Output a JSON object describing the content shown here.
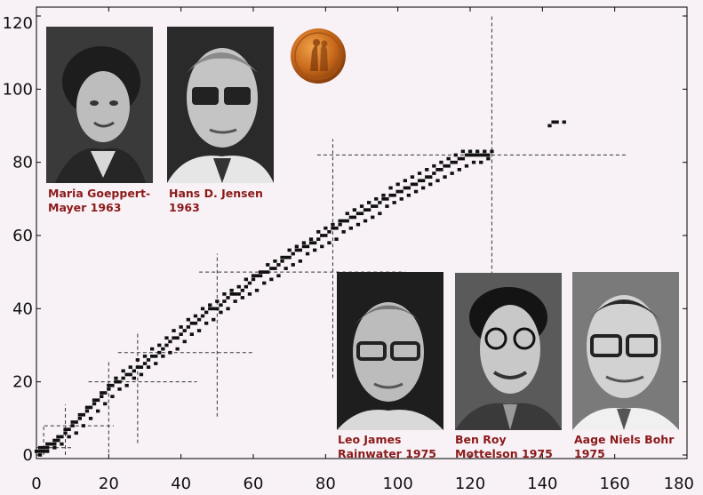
{
  "chart_data": {
    "type": "scatter",
    "xlim": [
      0,
      180
    ],
    "ylim": [
      0,
      120
    ],
    "xticks": [
      0,
      20,
      40,
      60,
      80,
      100,
      120,
      140,
      160,
      180
    ],
    "yticks": [
      0,
      20,
      40,
      60,
      80,
      100,
      120
    ],
    "magic_numbers": [
      2,
      8,
      20,
      28,
      50,
      82,
      126
    ],
    "grid": false,
    "series": [
      {
        "points": [
          [
            0,
            1
          ],
          [
            1,
            1
          ],
          [
            1,
            2
          ],
          [
            2,
            2
          ],
          [
            3,
            2
          ],
          [
            4,
            3
          ],
          [
            5,
            3
          ],
          [
            6,
            4
          ],
          [
            7,
            5
          ],
          [
            8,
            6
          ],
          [
            9,
            7
          ],
          [
            10,
            8
          ],
          [
            11,
            9
          ],
          [
            12,
            10
          ],
          [
            13,
            11
          ],
          [
            14,
            12
          ],
          [
            15,
            13
          ],
          [
            16,
            14
          ],
          [
            17,
            15
          ],
          [
            18,
            16
          ],
          [
            19,
            17
          ],
          [
            20,
            18
          ],
          [
            21,
            19
          ],
          [
            22,
            20
          ],
          [
            23,
            20
          ],
          [
            24,
            21
          ],
          [
            25,
            22
          ],
          [
            26,
            22
          ],
          [
            27,
            23
          ],
          [
            28,
            24
          ],
          [
            29,
            24
          ],
          [
            30,
            25
          ],
          [
            31,
            26
          ],
          [
            32,
            27
          ],
          [
            33,
            27
          ],
          [
            34,
            28
          ],
          [
            35,
            29
          ],
          [
            36,
            30
          ],
          [
            37,
            31
          ],
          [
            38,
            32
          ],
          [
            39,
            32
          ],
          [
            40,
            33
          ],
          [
            41,
            34
          ],
          [
            42,
            35
          ],
          [
            43,
            36
          ],
          [
            44,
            36
          ],
          [
            45,
            37
          ],
          [
            46,
            38
          ],
          [
            47,
            39
          ],
          [
            48,
            40
          ],
          [
            49,
            40
          ],
          [
            50,
            40
          ],
          [
            51,
            41
          ],
          [
            52,
            42
          ],
          [
            53,
            43
          ],
          [
            54,
            44
          ],
          [
            55,
            44
          ],
          [
            56,
            44
          ],
          [
            57,
            45
          ],
          [
            58,
            46
          ],
          [
            59,
            47
          ],
          [
            60,
            48
          ],
          [
            61,
            49
          ],
          [
            62,
            49
          ],
          [
            63,
            50
          ],
          [
            64,
            50
          ],
          [
            65,
            51
          ],
          [
            66,
            51
          ],
          [
            67,
            52
          ],
          [
            68,
            53
          ],
          [
            69,
            54
          ],
          [
            70,
            54
          ],
          [
            71,
            55
          ],
          [
            72,
            56
          ],
          [
            73,
            56
          ],
          [
            74,
            57
          ],
          [
            75,
            57
          ],
          [
            76,
            58
          ],
          [
            77,
            58
          ],
          [
            78,
            59
          ],
          [
            79,
            60
          ],
          [
            80,
            60
          ],
          [
            81,
            61
          ],
          [
            82,
            62
          ],
          [
            83,
            62
          ],
          [
            84,
            63
          ],
          [
            85,
            64
          ],
          [
            86,
            64
          ],
          [
            87,
            65
          ],
          [
            88,
            65
          ],
          [
            89,
            66
          ],
          [
            90,
            66
          ],
          [
            91,
            67
          ],
          [
            92,
            67
          ],
          [
            93,
            68
          ],
          [
            94,
            68
          ],
          [
            95,
            69
          ],
          [
            96,
            70
          ],
          [
            97,
            70
          ],
          [
            98,
            71
          ],
          [
            99,
            71
          ],
          [
            100,
            72
          ],
          [
            101,
            72
          ],
          [
            102,
            73
          ],
          [
            103,
            73
          ],
          [
            104,
            74
          ],
          [
            105,
            74
          ],
          [
            106,
            75
          ],
          [
            107,
            75
          ],
          [
            108,
            76
          ],
          [
            109,
            76
          ],
          [
            110,
            77
          ],
          [
            111,
            78
          ],
          [
            112,
            78
          ],
          [
            113,
            79
          ],
          [
            114,
            79
          ],
          [
            115,
            80
          ],
          [
            116,
            80
          ],
          [
            117,
            81
          ],
          [
            118,
            81
          ],
          [
            119,
            82
          ],
          [
            120,
            82
          ],
          [
            121,
            82
          ],
          [
            122,
            82
          ],
          [
            123,
            82
          ],
          [
            124,
            82
          ],
          [
            125,
            82
          ],
          [
            126,
            83
          ],
          [
            142,
            90
          ],
          [
            143,
            91
          ],
          [
            144,
            91
          ],
          [
            146,
            91
          ]
        ]
      },
      {
        "points": [
          [
            2,
            1
          ],
          [
            3,
            3
          ],
          [
            5,
            4
          ],
          [
            6,
            5
          ],
          [
            8,
            7
          ],
          [
            10,
            9
          ],
          [
            12,
            11
          ],
          [
            14,
            13
          ],
          [
            16,
            15
          ],
          [
            18,
            17
          ],
          [
            20,
            19
          ],
          [
            22,
            21
          ],
          [
            24,
            23
          ],
          [
            26,
            24
          ],
          [
            28,
            26
          ],
          [
            30,
            27
          ],
          [
            32,
            29
          ],
          [
            34,
            30
          ],
          [
            36,
            32
          ],
          [
            38,
            34
          ],
          [
            40,
            35
          ],
          [
            42,
            37
          ],
          [
            44,
            38
          ],
          [
            46,
            40
          ],
          [
            48,
            41
          ],
          [
            50,
            42
          ],
          [
            52,
            44
          ],
          [
            54,
            45
          ],
          [
            56,
            46
          ],
          [
            58,
            48
          ],
          [
            60,
            49
          ],
          [
            62,
            50
          ],
          [
            64,
            52
          ],
          [
            66,
            53
          ],
          [
            68,
            54
          ],
          [
            70,
            56
          ],
          [
            72,
            57
          ],
          [
            74,
            58
          ],
          [
            76,
            59
          ],
          [
            78,
            61
          ],
          [
            80,
            62
          ],
          [
            82,
            63
          ],
          [
            84,
            64
          ],
          [
            86,
            66
          ],
          [
            88,
            67
          ],
          [
            90,
            68
          ],
          [
            92,
            69
          ],
          [
            94,
            70
          ],
          [
            96,
            71
          ],
          [
            98,
            73
          ],
          [
            100,
            74
          ],
          [
            102,
            75
          ],
          [
            104,
            76
          ],
          [
            106,
            77
          ],
          [
            108,
            78
          ],
          [
            110,
            79
          ],
          [
            112,
            80
          ],
          [
            114,
            81
          ],
          [
            116,
            82
          ],
          [
            118,
            83
          ],
          [
            120,
            83
          ],
          [
            122,
            83
          ],
          [
            124,
            83
          ]
        ]
      },
      {
        "points": [
          [
            1,
            0
          ],
          [
            3,
            1
          ],
          [
            5,
            2
          ],
          [
            7,
            3
          ],
          [
            9,
            5
          ],
          [
            11,
            6
          ],
          [
            13,
            8
          ],
          [
            15,
            10
          ],
          [
            17,
            12
          ],
          [
            19,
            14
          ],
          [
            21,
            16
          ],
          [
            23,
            18
          ],
          [
            25,
            19
          ],
          [
            27,
            21
          ],
          [
            29,
            22
          ],
          [
            31,
            24
          ],
          [
            33,
            25
          ],
          [
            35,
            27
          ],
          [
            37,
            28
          ],
          [
            39,
            29
          ],
          [
            41,
            31
          ],
          [
            43,
            33
          ],
          [
            45,
            34
          ],
          [
            47,
            36
          ],
          [
            49,
            37
          ],
          [
            51,
            39
          ],
          [
            53,
            40
          ],
          [
            55,
            42
          ],
          [
            57,
            43
          ],
          [
            59,
            44
          ],
          [
            61,
            45
          ],
          [
            63,
            47
          ],
          [
            65,
            48
          ],
          [
            67,
            49
          ],
          [
            69,
            51
          ],
          [
            71,
            52
          ],
          [
            73,
            53
          ],
          [
            75,
            55
          ],
          [
            77,
            56
          ],
          [
            79,
            57
          ],
          [
            81,
            58
          ],
          [
            83,
            59
          ],
          [
            85,
            61
          ],
          [
            87,
            62
          ],
          [
            89,
            63
          ],
          [
            91,
            64
          ],
          [
            93,
            65
          ],
          [
            95,
            66
          ],
          [
            97,
            68
          ],
          [
            99,
            69
          ],
          [
            101,
            70
          ],
          [
            103,
            71
          ],
          [
            105,
            72
          ],
          [
            107,
            73
          ],
          [
            109,
            74
          ],
          [
            111,
            75
          ],
          [
            113,
            76
          ],
          [
            115,
            77
          ],
          [
            117,
            78
          ],
          [
            119,
            79
          ],
          [
            121,
            80
          ],
          [
            123,
            80
          ],
          [
            125,
            81
          ]
        ]
      }
    ]
  },
  "photos": [
    {
      "caption_line1": "Maria Goeppert-",
      "caption_line2": "Mayer 1963",
      "icon": "portrait-woman"
    },
    {
      "caption_line1": "Hans D. Jensen",
      "caption_line2": "1963",
      "icon": "portrait-man-glasses"
    },
    {
      "caption_line1": "Leo James",
      "caption_line2": "Rainwater 1975",
      "icon": "portrait-man-glasses"
    },
    {
      "caption_line1": "Ben Roy",
      "caption_line2": "Mottelson 1975",
      "icon": "portrait-man-glasses"
    },
    {
      "caption_line1": "Aage Niels Bohr",
      "caption_line2": "1975",
      "icon": "portrait-man-glasses"
    }
  ],
  "medal": {
    "icon": "nobel-medal-icon",
    "color": "#c96a1c"
  },
  "colors": {
    "caption": "#8b1a1a",
    "background": "#f8f2f6",
    "marker": "#111111"
  }
}
